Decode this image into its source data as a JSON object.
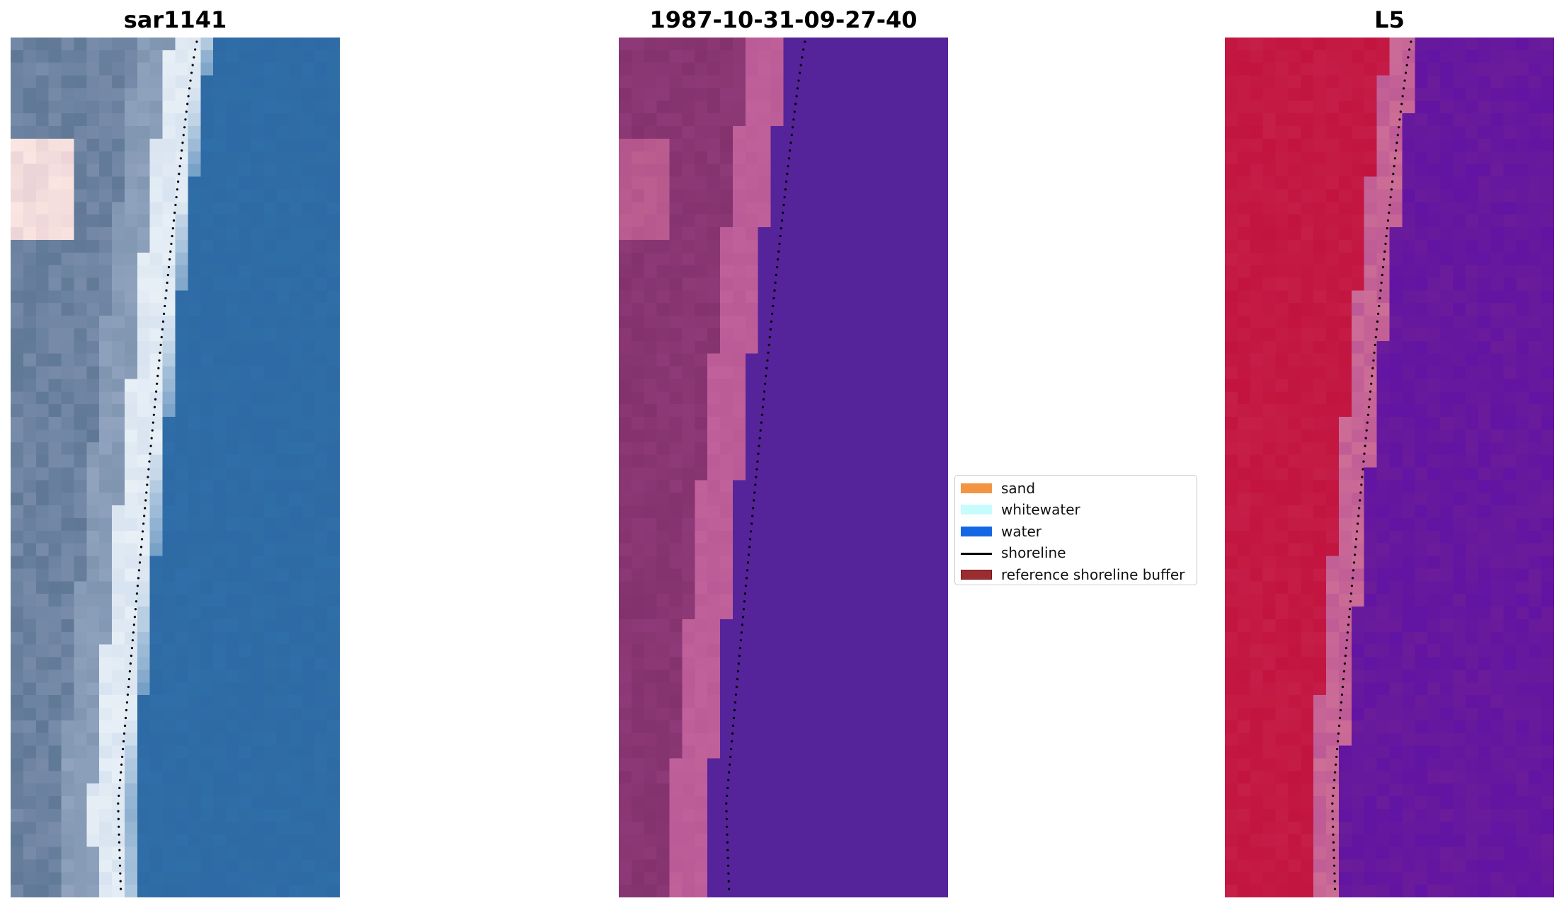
{
  "panels": [
    {
      "title": "sar1141",
      "image": "rgb"
    },
    {
      "title": "1987-10-31-09-27-40",
      "image": "classification"
    },
    {
      "title": "L5",
      "image": "ndwi"
    }
  ],
  "legend": {
    "items": [
      {
        "label": "sand",
        "kind": "patch",
        "color": "#f39443"
      },
      {
        "label": "whitewater",
        "kind": "patch",
        "color": "#c7fcfd"
      },
      {
        "label": "water",
        "kind": "patch",
        "color": "#1566e5"
      },
      {
        "label": "shoreline",
        "kind": "line",
        "color": "#000000"
      },
      {
        "label": "reference shoreline buffer",
        "kind": "patch",
        "color": "#9b2d31",
        "edge": "#6e1a1c"
      }
    ]
  },
  "colors": {
    "ocean_rgb": "#2f6ea8",
    "water_class": "#55249a",
    "land_class": "#8e3a78",
    "land_ndwi": "#c2143f",
    "water_ndwi": "#6a1c9a"
  }
}
